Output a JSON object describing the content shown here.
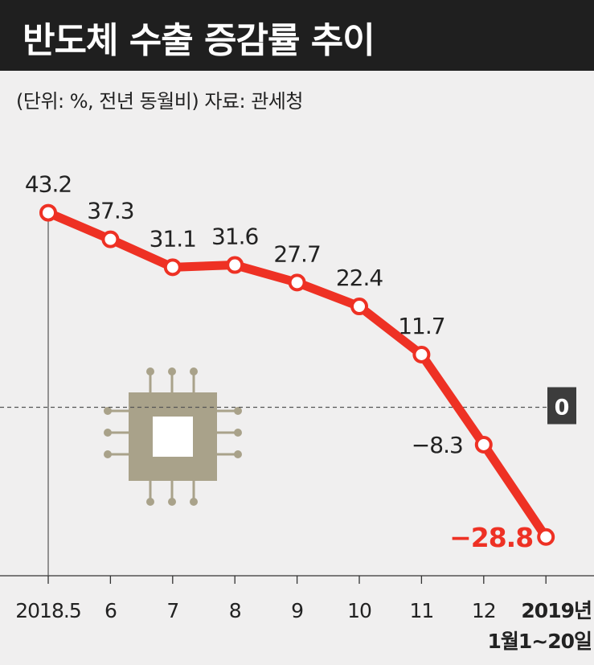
{
  "title": "반도체 수출 증감률 추이",
  "subtitle": "(단위: %, 전년 동월비)  자료: 관세청",
  "colors": {
    "line": "#ee3124",
    "title_bg": "#1f1f1f",
    "background": "#f0efef",
    "chip": "#a9a28a",
    "zero_badge": "#3c3c3c"
  },
  "icon": "semiconductor-chip-icon",
  "chart_data": {
    "type": "line",
    "title": "반도체 수출 증감률 추이",
    "unit_note": "(단위: %, 전년 동월비)",
    "source": "자료: 관세청",
    "categories": [
      "2018.5",
      "6",
      "7",
      "8",
      "9",
      "10",
      "11",
      "12",
      "2019년\n1월1~20일"
    ],
    "x_labels": [
      [
        "2018.5"
      ],
      [
        "6"
      ],
      [
        "7"
      ],
      [
        "8"
      ],
      [
        "9"
      ],
      [
        "10"
      ],
      [
        "11"
      ],
      [
        "12"
      ],
      [
        "2019년",
        "1월1~20일"
      ]
    ],
    "values": [
      43.2,
      37.3,
      31.1,
      31.6,
      27.7,
      22.4,
      11.7,
      -8.3,
      -28.8
    ],
    "value_labels": [
      "43.2",
      "37.3",
      "31.1",
      "31.6",
      "27.7",
      "22.4",
      "11.7",
      "−8.3",
      "−28.8"
    ],
    "zero_label": "0",
    "ylim": [
      -35,
      50
    ],
    "grid": false,
    "zero_line": "dashed"
  }
}
